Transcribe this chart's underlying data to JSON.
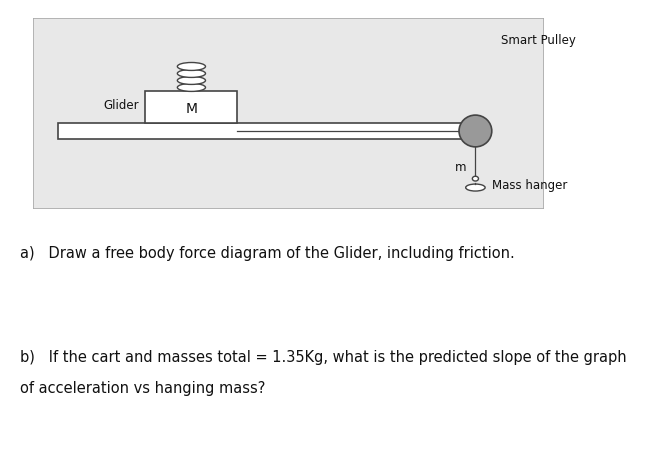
{
  "bg_color": "#e8e8e8",
  "white": "#ffffff",
  "gray": "#999999",
  "dark": "#444444",
  "text_color": "#111111",
  "label_glider": "Glider",
  "label_M": "M",
  "label_smart_pulley": "Smart Pulley",
  "label_m": "m",
  "label_mass_hanger": "Mass hanger",
  "question_a": "a)   Draw a free body force diagram of the Glider, including friction.",
  "question_b_line1": "b)   If the cart and masses total = 1.35Kg, what is the predicted slope of the graph",
  "question_b_line2": "of acceleration vs hanging mass?",
  "fig_width": 6.56,
  "fig_height": 4.54,
  "dpi": 100
}
